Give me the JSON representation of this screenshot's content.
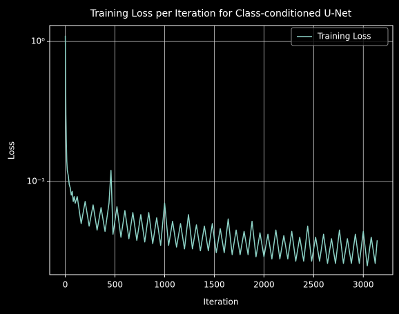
{
  "chart_data": {
    "type": "line",
    "title": "Training Loss per Iteration for Class-conditioned U-Net",
    "xlabel": "Iteration",
    "ylabel": "Loss",
    "yscale": "log",
    "grid": true,
    "legend": "upper right",
    "xlim": [
      -157,
      3297
    ],
    "ylim": [
      0.0216,
      1.3
    ],
    "xticks": [
      0,
      500,
      1000,
      1500,
      2000,
      2500,
      3000
    ],
    "yticks": [
      {
        "value": 0.1,
        "label": "10⁻¹"
      },
      {
        "value": 1,
        "label": "10⁰"
      }
    ],
    "x": [
      0,
      3,
      6,
      10,
      15,
      20,
      30,
      40,
      50,
      60,
      70,
      80,
      90,
      100,
      120,
      160,
      200,
      240,
      280,
      320,
      360,
      400,
      440,
      460,
      480,
      520,
      560,
      600,
      640,
      680,
      720,
      760,
      800,
      840,
      880,
      920,
      960,
      1000,
      1040,
      1080,
      1120,
      1160,
      1200,
      1240,
      1280,
      1320,
      1360,
      1400,
      1440,
      1480,
      1520,
      1560,
      1600,
      1640,
      1680,
      1720,
      1760,
      1800,
      1840,
      1880,
      1920,
      1960,
      2000,
      2040,
      2080,
      2120,
      2160,
      2200,
      2240,
      2280,
      2320,
      2360,
      2400,
      2440,
      2480,
      2520,
      2560,
      2600,
      2640,
      2680,
      2720,
      2760,
      2800,
      2840,
      2880,
      2920,
      2960,
      3000,
      3040,
      3080,
      3120,
      3140
    ],
    "series": [
      {
        "name": "Training Loss",
        "color": "#8dd3c7",
        "values": [
          1.1,
          0.6,
          0.3,
          0.2,
          0.14,
          0.12,
          0.11,
          0.095,
          0.09,
          0.08,
          0.085,
          0.072,
          0.078,
          0.07,
          0.078,
          0.05,
          0.072,
          0.048,
          0.068,
          0.045,
          0.065,
          0.044,
          0.07,
          0.12,
          0.042,
          0.066,
          0.04,
          0.062,
          0.039,
          0.06,
          0.038,
          0.058,
          0.037,
          0.06,
          0.036,
          0.055,
          0.035,
          0.07,
          0.035,
          0.052,
          0.034,
          0.05,
          0.033,
          0.058,
          0.033,
          0.049,
          0.032,
          0.048,
          0.032,
          0.05,
          0.031,
          0.046,
          0.031,
          0.054,
          0.03,
          0.045,
          0.03,
          0.044,
          0.03,
          0.052,
          0.029,
          0.043,
          0.029,
          0.042,
          0.028,
          0.045,
          0.028,
          0.041,
          0.028,
          0.044,
          0.027,
          0.04,
          0.027,
          0.048,
          0.027,
          0.04,
          0.027,
          0.042,
          0.026,
          0.039,
          0.026,
          0.045,
          0.026,
          0.039,
          0.026,
          0.042,
          0.026,
          0.044,
          0.025,
          0.04,
          0.026,
          0.038
        ]
      }
    ]
  }
}
